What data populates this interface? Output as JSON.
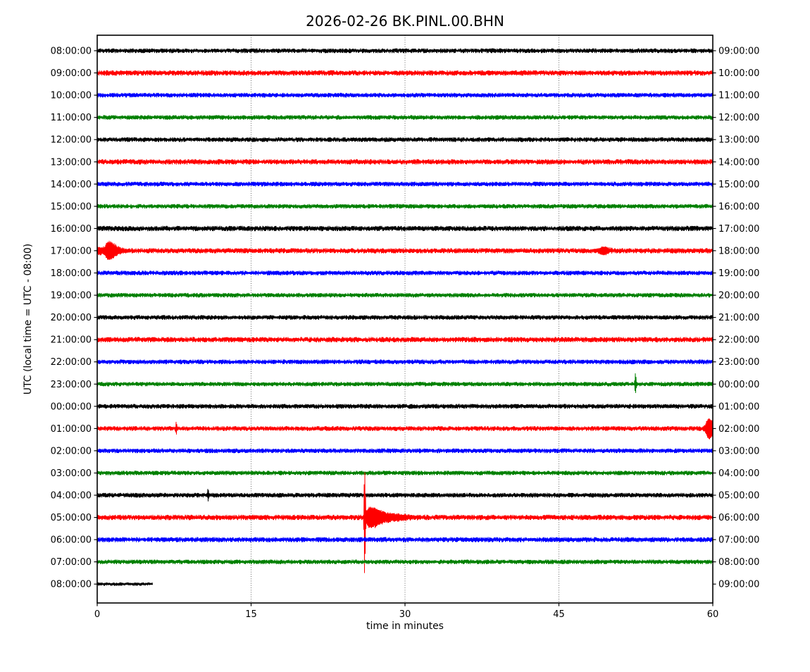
{
  "figure": {
    "background": "#ffffff",
    "spine_color": "#000000",
    "grid_color": "#000000",
    "grid_style": "dotted-vertical"
  },
  "chart_data": {
    "type": "line",
    "subtype": "helicorder-dayplot",
    "title": "2026-02-26 BK.PINL.00.BHN",
    "xlabel": "time in minutes",
    "ylabel": "UTC (local time = UTC - 08:00)",
    "xlim": [
      0,
      60
    ],
    "x_ticks": [
      0,
      15,
      30,
      45,
      60
    ],
    "x_tick_labels": [
      "0",
      "15",
      "30",
      "45",
      "60"
    ],
    "grid": "vertical dotted lines at 15, 30, 45 minutes",
    "legend": "none",
    "interval_minutes": 60,
    "color_cycle": [
      "#000000",
      "#ff0000",
      "#0000ff",
      "#008000"
    ],
    "rows": [
      {
        "left_label": "08:00:00",
        "right_label": "09:00:00",
        "color": "#000000",
        "noise_amp": 3.0,
        "extent": [
          0,
          60
        ],
        "events": []
      },
      {
        "left_label": "09:00:00",
        "right_label": "10:00:00",
        "color": "#ff0000",
        "noise_amp": 3.5,
        "extent": [
          0,
          60
        ],
        "events": []
      },
      {
        "left_label": "10:00:00",
        "right_label": "11:00:00",
        "color": "#0000ff",
        "noise_amp": 3.0,
        "extent": [
          0,
          60
        ],
        "events": []
      },
      {
        "left_label": "11:00:00",
        "right_label": "12:00:00",
        "color": "#008000",
        "noise_amp": 2.9,
        "extent": [
          0,
          60
        ],
        "events": []
      },
      {
        "left_label": "12:00:00",
        "right_label": "13:00:00",
        "color": "#000000",
        "noise_amp": 3.0,
        "extent": [
          0,
          60
        ],
        "events": []
      },
      {
        "left_label": "13:00:00",
        "right_label": "14:00:00",
        "color": "#ff0000",
        "noise_amp": 3.5,
        "extent": [
          0,
          60
        ],
        "events": []
      },
      {
        "left_label": "14:00:00",
        "right_label": "15:00:00",
        "color": "#0000ff",
        "noise_amp": 3.0,
        "extent": [
          0,
          60
        ],
        "events": []
      },
      {
        "left_label": "15:00:00",
        "right_label": "16:00:00",
        "color": "#008000",
        "noise_amp": 2.9,
        "extent": [
          0,
          60
        ],
        "events": []
      },
      {
        "left_label": "16:00:00",
        "right_label": "17:00:00",
        "color": "#000000",
        "noise_amp": 3.4,
        "extent": [
          0,
          60
        ],
        "events": []
      },
      {
        "left_label": "17:00:00",
        "right_label": "18:00:00",
        "color": "#ff0000",
        "noise_amp": 3.4,
        "extent": [
          0,
          60
        ],
        "events": [
          {
            "t": 0.2,
            "amp": 3,
            "attack": 0.3,
            "decay": 0.8
          },
          {
            "t": 1.1,
            "amp": 11,
            "attack": 0.3,
            "decay": 0.9
          },
          {
            "t": 49.3,
            "amp": 4,
            "attack": 0.4,
            "decay": 0.6
          }
        ]
      },
      {
        "left_label": "18:00:00",
        "right_label": "19:00:00",
        "color": "#0000ff",
        "noise_amp": 3.0,
        "extent": [
          0,
          60
        ],
        "events": []
      },
      {
        "left_label": "19:00:00",
        "right_label": "20:00:00",
        "color": "#008000",
        "noise_amp": 2.9,
        "extent": [
          0,
          60
        ],
        "events": []
      },
      {
        "left_label": "20:00:00",
        "right_label": "21:00:00",
        "color": "#000000",
        "noise_amp": 3.0,
        "extent": [
          0,
          60
        ],
        "events": []
      },
      {
        "left_label": "21:00:00",
        "right_label": "22:00:00",
        "color": "#ff0000",
        "noise_amp": 3.5,
        "extent": [
          0,
          60
        ],
        "events": []
      },
      {
        "left_label": "22:00:00",
        "right_label": "23:00:00",
        "color": "#0000ff",
        "noise_amp": 3.0,
        "extent": [
          0,
          60
        ],
        "events": []
      },
      {
        "left_label": "23:00:00",
        "right_label": "00:00:00",
        "color": "#008000",
        "noise_amp": 2.9,
        "extent": [
          0,
          60
        ],
        "events": [
          {
            "t": 52.45,
            "amp": 13,
            "attack": 0.06,
            "decay": 0.1
          }
        ]
      },
      {
        "left_label": "00:00:00",
        "right_label": "01:00:00",
        "color": "#000000",
        "noise_amp": 3.0,
        "extent": [
          0,
          60
        ],
        "events": []
      },
      {
        "left_label": "01:00:00",
        "right_label": "02:00:00",
        "color": "#ff0000",
        "noise_amp": 3.1,
        "extent": [
          0,
          60
        ],
        "events": [
          {
            "t": 7.7,
            "amp": 7,
            "attack": 0.05,
            "decay": 0.07
          },
          {
            "t": 59.6,
            "amp": 13,
            "attack": 0.3,
            "decay": 0.6
          }
        ]
      },
      {
        "left_label": "02:00:00",
        "right_label": "03:00:00",
        "color": "#0000ff",
        "noise_amp": 3.0,
        "extent": [
          0,
          60
        ],
        "events": []
      },
      {
        "left_label": "03:00:00",
        "right_label": "04:00:00",
        "color": "#008000",
        "noise_amp": 2.9,
        "extent": [
          0,
          60
        ],
        "events": []
      },
      {
        "left_label": "04:00:00",
        "right_label": "05:00:00",
        "color": "#000000",
        "noise_amp": 3.0,
        "extent": [
          0,
          60
        ],
        "events": [
          {
            "t": 10.8,
            "amp": 7,
            "attack": 0.05,
            "decay": 0.07
          }
        ]
      },
      {
        "left_label": "05:00:00",
        "right_label": "06:00:00",
        "color": "#ff0000",
        "noise_amp": 3.5,
        "extent": [
          0,
          60
        ],
        "events": [
          {
            "t": 26.05,
            "amp": 76,
            "attack": 0.05,
            "decay": 0.1
          },
          {
            "t": 26.6,
            "amp": 13,
            "attack": 0.4,
            "decay": 1.1
          },
          {
            "t": 28.5,
            "amp": 3,
            "attack": 1.2,
            "decay": 1.8
          }
        ]
      },
      {
        "left_label": "06:00:00",
        "right_label": "07:00:00",
        "color": "#0000ff",
        "noise_amp": 3.3,
        "extent": [
          0,
          60
        ],
        "events": []
      },
      {
        "left_label": "07:00:00",
        "right_label": "08:00:00",
        "color": "#008000",
        "noise_amp": 2.9,
        "extent": [
          0,
          60
        ],
        "events": []
      },
      {
        "left_label": "08:00:00",
        "right_label": "09:00:00",
        "color": "#000000",
        "noise_amp": 2.2,
        "extent": [
          0,
          5.4
        ],
        "events": []
      }
    ]
  }
}
